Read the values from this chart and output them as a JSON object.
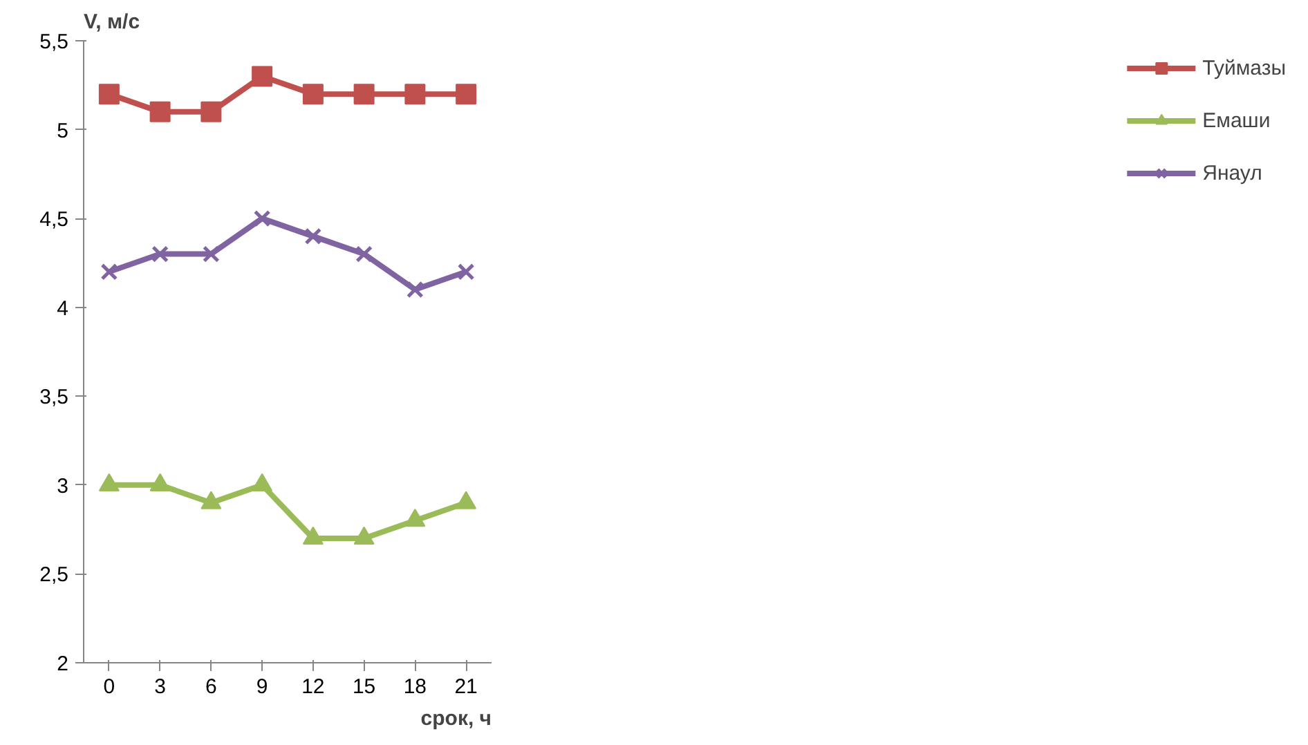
{
  "chart_data": {
    "type": "line",
    "xlabel": "срок, ч",
    "ylabel": "V, м/с",
    "categories": [
      "0",
      "3",
      "6",
      "9",
      "12",
      "15",
      "18",
      "21"
    ],
    "series": [
      {
        "name": "Туймазы",
        "color": "#c0504d",
        "marker": "square",
        "values": [
          5.2,
          5.1,
          5.1,
          5.3,
          5.2,
          5.2,
          5.2,
          5.2
        ]
      },
      {
        "name": "Емаши",
        "color": "#9bbb59",
        "marker": "triangle",
        "values": [
          3.0,
          3.0,
          2.9,
          3.0,
          2.7,
          2.7,
          2.8,
          2.9
        ]
      },
      {
        "name": "Янаул",
        "color": "#8064a2",
        "marker": "cross",
        "values": [
          4.2,
          4.3,
          4.3,
          4.5,
          4.4,
          4.3,
          4.1,
          4.2
        ]
      }
    ],
    "ylim": [
      2,
      5.5
    ],
    "yticks": [
      2,
      {
        "value": 2.5,
        "label": "2,5"
      },
      3,
      {
        "value": 3.5,
        "label": "3,5"
      },
      4,
      {
        "value": 4.5,
        "label": "4,5"
      },
      5,
      {
        "value": 5.5,
        "label": "5,5"
      }
    ],
    "grid": false,
    "legend": "right",
    "line_style": "solid"
  }
}
